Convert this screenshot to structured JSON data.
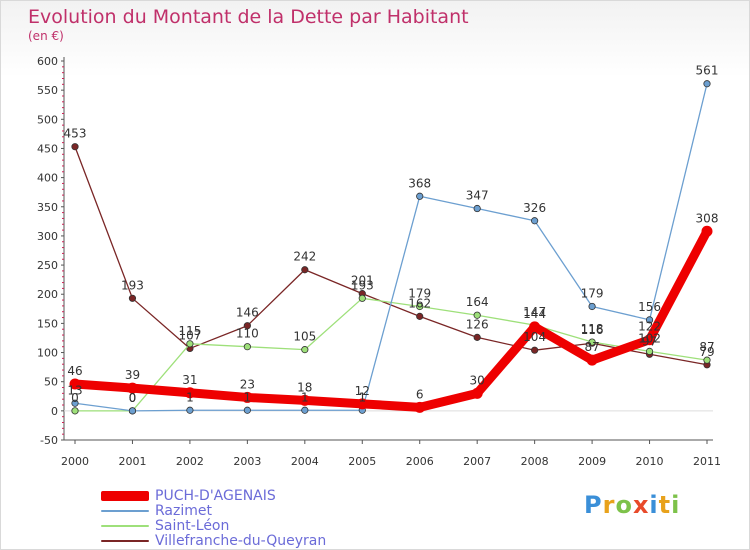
{
  "title": "Evolution du Montant de la Dette par Habitant",
  "subtitle": "(en €)",
  "logo": {
    "text": "Proxiti",
    "letter_colors": [
      "#3a8fd8",
      "#e8a21c",
      "#7dc24a",
      "#e84a2a",
      "#3a8fd8",
      "#e8a21c",
      "#7dc24a"
    ]
  },
  "chart_data": {
    "type": "line",
    "x": [
      "2000",
      "2001",
      "2002",
      "2003",
      "2004",
      "2005",
      "2006",
      "2007",
      "2008",
      "2009",
      "2010",
      "2011"
    ],
    "ylim": [
      -50,
      600
    ],
    "y_ticks": [
      "-50",
      "0",
      "50",
      "100",
      "150",
      "200",
      "250",
      "300",
      "350",
      "400",
      "450",
      "500",
      "550",
      "600"
    ],
    "grid": false,
    "legend_position": "bottom-left",
    "series": [
      {
        "name": "Villefranche-du-Queyran",
        "color": "#7a2626",
        "values": [
          453,
          193,
          107,
          146,
          242,
          201,
          162,
          126,
          104,
          116,
          97,
          79
        ],
        "labels": [
          "453",
          "193",
          "107",
          "146",
          "242",
          "201",
          "162",
          "126",
          "104",
          "116",
          "97",
          "79"
        ]
      },
      {
        "name": "Saint-Léon",
        "color": "#9ee07a",
        "values": [
          0,
          0,
          115,
          110,
          105,
          193,
          179,
          164,
          147,
          118,
          102,
          87
        ],
        "labels": [
          "0",
          "0",
          "115",
          "110",
          "105",
          "193",
          "179",
          "164",
          "147",
          "118",
          "102",
          "87"
        ]
      },
      {
        "name": "Razimet",
        "color": "#6c9fd0",
        "values": [
          13,
          0,
          1,
          1,
          1,
          1,
          368,
          347,
          326,
          179,
          156,
          561
        ],
        "labels": [
          "13",
          "0",
          "1",
          "1",
          "1",
          "1",
          "368",
          "347",
          "326",
          "179",
          "156",
          "561"
        ]
      },
      {
        "name": "PUCH-D'AGENAIS",
        "color": "#ee0000",
        "values": [
          46,
          39,
          31,
          23,
          18,
          12,
          6,
          30,
          144,
          87,
          122,
          308
        ],
        "labels": [
          "46",
          "39",
          "31",
          "23",
          "18",
          "12",
          "6",
          "30",
          "144",
          "87",
          "122",
          "308"
        ]
      }
    ],
    "legend": [
      "PUCH-D'AGENAIS",
      "Razimet",
      "Saint-Léon",
      "Villefranche-du-Queyran"
    ]
  }
}
